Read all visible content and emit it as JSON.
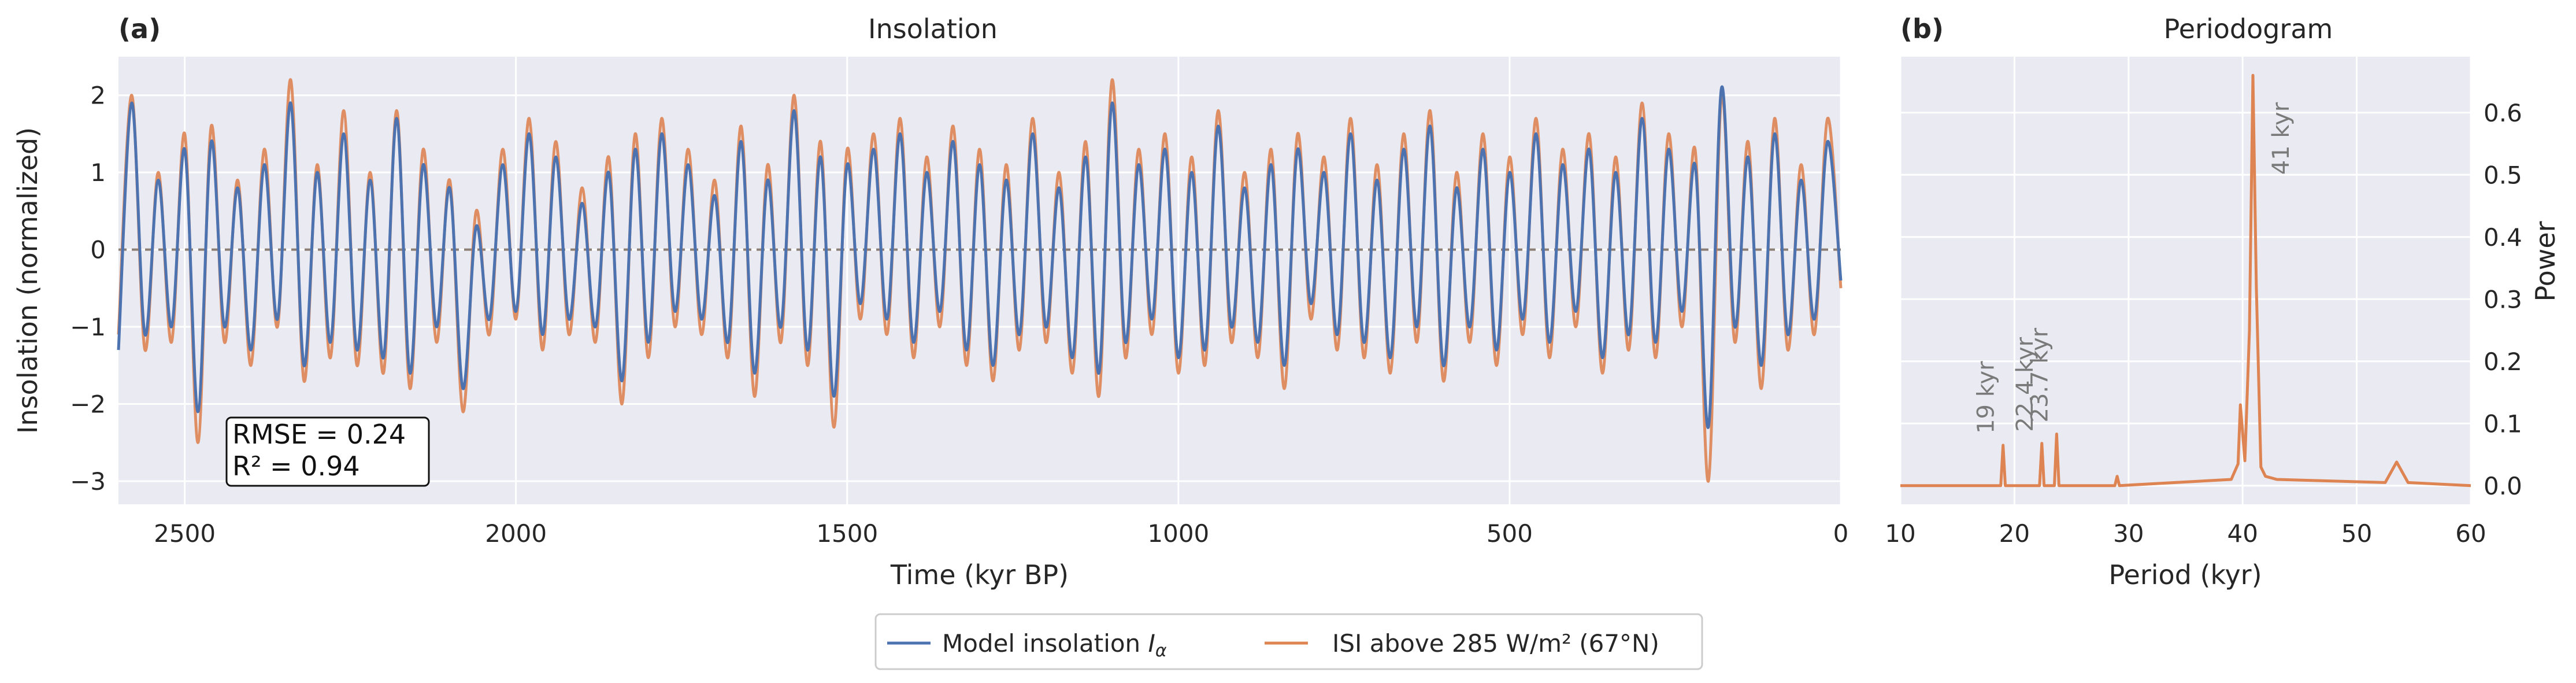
{
  "chart_data": [
    {
      "type": "line",
      "panel_label": "(a)",
      "title": "Insolation",
      "xlabel": "Time (kyr BP)",
      "ylabel": "Insolation (normalized)",
      "xlim": [
        2600,
        0
      ],
      "ylim": [
        -3.3,
        2.5
      ],
      "x_ticks": [
        2500,
        2000,
        1500,
        1000,
        500,
        0
      ],
      "y_ticks": [
        2,
        1,
        0,
        -1,
        -2,
        -3
      ],
      "y_tick_labels": [
        "2",
        "1",
        "0",
        "−1",
        "−2",
        "−3"
      ],
      "grid": true,
      "zero_line": {
        "y": 0,
        "style": "dashed",
        "color": "#8c7f75"
      },
      "stats_box": {
        "rmse": "RMSE = 0.24",
        "r2": "R² = 0.94"
      },
      "series": [
        {
          "name": "Model insolation Iα",
          "color": "#4c72b0",
          "x": [
            2600,
            2580,
            2560,
            2540,
            2520,
            2500,
            2480,
            2460,
            2440,
            2420,
            2400,
            2380,
            2360,
            2340,
            2320,
            2300,
            2280,
            2260,
            2240,
            2220,
            2200,
            2180,
            2160,
            2140,
            2120,
            2100,
            2080,
            2060,
            2040,
            2020,
            2000,
            1980,
            1960,
            1940,
            1920,
            1900,
            1880,
            1860,
            1840,
            1820,
            1800,
            1780,
            1760,
            1740,
            1720,
            1700,
            1680,
            1660,
            1640,
            1620,
            1600,
            1580,
            1560,
            1540,
            1520,
            1500,
            1480,
            1460,
            1440,
            1420,
            1400,
            1380,
            1360,
            1340,
            1320,
            1300,
            1280,
            1260,
            1240,
            1220,
            1200,
            1180,
            1160,
            1140,
            1120,
            1100,
            1080,
            1060,
            1040,
            1020,
            1000,
            980,
            960,
            940,
            920,
            900,
            880,
            860,
            840,
            820,
            800,
            780,
            760,
            740,
            720,
            700,
            680,
            660,
            640,
            620,
            600,
            580,
            560,
            540,
            520,
            500,
            480,
            460,
            440,
            420,
            400,
            380,
            360,
            340,
            320,
            300,
            280,
            260,
            240,
            220,
            200,
            180,
            160,
            140,
            120,
            100,
            80,
            60,
            40,
            20,
            0
          ],
          "y": [
            -1.3,
            1.9,
            -1.1,
            0.9,
            -1.0,
            1.3,
            -2.1,
            1.4,
            -1.0,
            0.8,
            -1.3,
            1.1,
            -0.9,
            1.9,
            -1.5,
            1.0,
            -1.2,
            1.5,
            -1.3,
            0.9,
            -1.4,
            1.7,
            -1.6,
            1.1,
            -1.0,
            0.8,
            -1.8,
            0.3,
            -0.9,
            1.1,
            -0.8,
            1.5,
            -1.1,
            1.2,
            -0.9,
            0.6,
            -1.0,
            1.0,
            -1.7,
            1.3,
            -1.2,
            1.5,
            -0.8,
            1.1,
            -0.9,
            0.7,
            -1.2,
            1.4,
            -1.6,
            0.9,
            -1.0,
            1.8,
            -1.3,
            1.2,
            -1.9,
            1.1,
            -0.7,
            1.3,
            -0.9,
            1.5,
            -1.2,
            1.0,
            -0.8,
            1.4,
            -1.3,
            1.1,
            -1.5,
            0.9,
            -1.1,
            1.5,
            -1.0,
            0.8,
            -1.4,
            1.2,
            -1.6,
            1.9,
            -1.2,
            1.1,
            -0.9,
            1.3,
            -1.4,
            1.0,
            -1.3,
            1.6,
            -1.0,
            0.8,
            -1.2,
            1.1,
            -1.5,
            1.3,
            -0.7,
            1.0,
            -1.1,
            1.5,
            -1.2,
            0.9,
            -1.4,
            1.3,
            -1.0,
            1.6,
            -1.5,
            0.8,
            -1.0,
            1.3,
            -1.3,
            1.0,
            -0.9,
            1.5,
            -1.2,
            1.1,
            -0.8,
            1.3,
            -1.4,
            1.0,
            -1.1,
            1.7,
            -1.2,
            1.3,
            -0.8,
            1.1,
            -2.3,
            2.1,
            -1.0,
            1.2,
            -1.5,
            1.5,
            -1.1,
            0.9,
            -0.9,
            1.4,
            -0.4
          ]
        },
        {
          "name": "ISI above 285 W/m² (67°N)",
          "color": "#dd8452",
          "x": [
            2600,
            2580,
            2560,
            2540,
            2520,
            2500,
            2480,
            2460,
            2440,
            2420,
            2400,
            2380,
            2360,
            2340,
            2320,
            2300,
            2280,
            2260,
            2240,
            2220,
            2200,
            2180,
            2160,
            2140,
            2120,
            2100,
            2080,
            2060,
            2040,
            2020,
            2000,
            1980,
            1960,
            1940,
            1920,
            1900,
            1880,
            1860,
            1840,
            1820,
            1800,
            1780,
            1760,
            1740,
            1720,
            1700,
            1680,
            1660,
            1640,
            1620,
            1600,
            1580,
            1560,
            1540,
            1520,
            1500,
            1480,
            1460,
            1440,
            1420,
            1400,
            1380,
            1360,
            1340,
            1320,
            1300,
            1280,
            1260,
            1240,
            1220,
            1200,
            1180,
            1160,
            1140,
            1120,
            1100,
            1080,
            1060,
            1040,
            1020,
            1000,
            980,
            960,
            940,
            920,
            900,
            880,
            860,
            840,
            820,
            800,
            780,
            760,
            740,
            720,
            700,
            680,
            660,
            640,
            620,
            600,
            580,
            560,
            540,
            520,
            500,
            480,
            460,
            440,
            420,
            400,
            380,
            360,
            340,
            320,
            300,
            280,
            260,
            240,
            220,
            200,
            180,
            160,
            140,
            120,
            100,
            80,
            60,
            40,
            20,
            0
          ],
          "y": [
            -1.1,
            2.0,
            -1.3,
            1.0,
            -1.2,
            1.5,
            -2.5,
            1.6,
            -1.2,
            0.9,
            -1.5,
            1.3,
            -1.0,
            2.2,
            -1.7,
            1.1,
            -1.4,
            1.8,
            -1.5,
            1.0,
            -1.6,
            1.8,
            -1.8,
            1.3,
            -1.2,
            0.9,
            -2.1,
            0.5,
            -1.1,
            1.3,
            -0.9,
            1.7,
            -1.3,
            1.4,
            -1.1,
            0.8,
            -1.2,
            1.2,
            -2.0,
            1.5,
            -1.4,
            1.7,
            -1.0,
            1.3,
            -1.1,
            0.9,
            -1.4,
            1.6,
            -1.9,
            1.1,
            -1.2,
            2.0,
            -1.5,
            1.4,
            -2.3,
            1.3,
            -0.9,
            1.5,
            -1.1,
            1.7,
            -1.4,
            1.2,
            -1.0,
            1.6,
            -1.5,
            1.3,
            -1.7,
            1.1,
            -1.3,
            1.7,
            -1.2,
            1.0,
            -1.6,
            1.4,
            -1.9,
            2.2,
            -1.4,
            1.3,
            -1.1,
            1.5,
            -1.6,
            1.2,
            -1.5,
            1.8,
            -1.2,
            1.0,
            -1.4,
            1.3,
            -1.8,
            1.5,
            -0.9,
            1.2,
            -1.3,
            1.7,
            -1.4,
            1.1,
            -1.6,
            1.5,
            -1.2,
            1.8,
            -1.7,
            1.0,
            -1.2,
            1.5,
            -1.5,
            1.2,
            -1.1,
            1.7,
            -1.4,
            1.3,
            -1.0,
            1.5,
            -1.6,
            1.2,
            -1.3,
            1.9,
            -1.4,
            1.5,
            -1.0,
            1.3,
            -3.0,
            2.0,
            -1.2,
            1.4,
            -1.8,
            1.7,
            -1.3,
            1.1,
            -1.1,
            1.7,
            -0.5
          ]
        }
      ]
    },
    {
      "type": "line",
      "panel_label": "(b)",
      "title": "Periodogram",
      "xlabel": "Period (kyr)",
      "ylabel": "Power",
      "xlim": [
        10,
        60
      ],
      "ylim": [
        -0.03,
        0.69
      ],
      "x_ticks": [
        10,
        20,
        30,
        40,
        50,
        60
      ],
      "y_ticks": [
        0.0,
        0.1,
        0.2,
        0.3,
        0.4,
        0.5,
        0.6
      ],
      "y_tick_labels": [
        "0.0",
        "0.1",
        "0.2",
        "0.3",
        "0.4",
        "0.5",
        "0.6"
      ],
      "grid": true,
      "series": [
        {
          "name": "",
          "color": "#dd8452",
          "x": [
            10,
            18.8,
            19.0,
            19.2,
            22.2,
            22.4,
            22.6,
            23.5,
            23.7,
            23.9,
            28.8,
            29.0,
            29.2,
            39.0,
            39.6,
            39.8,
            40.2,
            40.6,
            40.9,
            41.2,
            41.6,
            42.0,
            43.0,
            52.5,
            53.5,
            54.5,
            60
          ],
          "y": [
            0.0,
            0.0,
            0.065,
            0.0,
            0.0,
            0.068,
            0.0,
            0.0,
            0.083,
            0.0,
            0.0,
            0.015,
            0.0,
            0.01,
            0.035,
            0.13,
            0.04,
            0.25,
            0.66,
            0.32,
            0.03,
            0.015,
            0.01,
            0.005,
            0.038,
            0.005,
            0.0
          ]
        }
      ],
      "annotations": [
        {
          "x": 19.0,
          "text": "19 kyr"
        },
        {
          "x": 22.4,
          "text": "22.4 kyr"
        },
        {
          "x": 23.7,
          "text": "23.7 kyr"
        },
        {
          "x": 41.0,
          "text": "41 kyr"
        }
      ]
    }
  ],
  "legend": {
    "placement": "bottom-center",
    "items": [
      {
        "label": "Model insolation ",
        "italic": "I",
        "sub": "α",
        "color": "#4c72b0"
      },
      {
        "label": "ISI above 285 W/m² (67°N)",
        "italic": "",
        "sub": "",
        "color": "#dd8452"
      }
    ]
  }
}
